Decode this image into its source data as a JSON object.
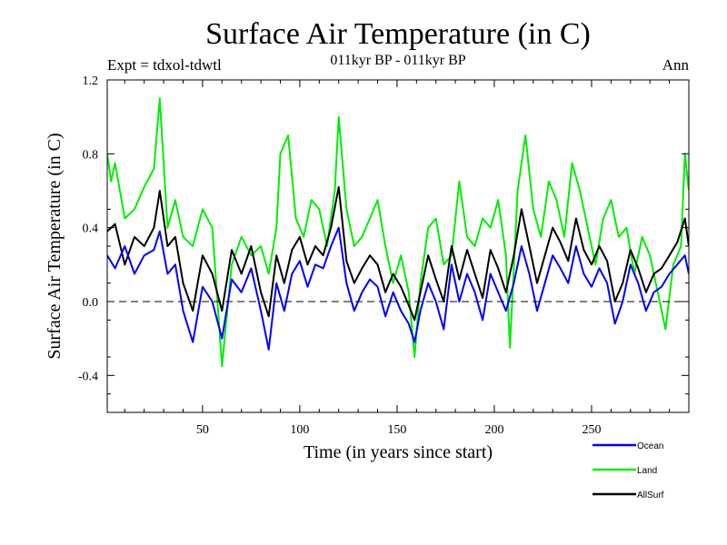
{
  "chart_data": {
    "type": "line",
    "title": "Surface Air Temperature (in C)",
    "subtitle": "011kyr BP - 011kyr BP",
    "experiment_label": "Expt = tdxol-tdwtl",
    "season_label": "Ann",
    "xlabel": "Time (in years since start)",
    "ylabel": "Surface Air Temperature (in C)",
    "xlim": [
      1,
      300
    ],
    "ylim": [
      -0.6,
      1.2
    ],
    "x_ticks": [
      50,
      100,
      150,
      200,
      250
    ],
    "x_tick_labels": [
      "50",
      "100",
      "150",
      "200",
      "250"
    ],
    "y_ticks": [
      -0.4,
      0.0,
      0.4,
      0.8,
      1.2
    ],
    "y_tick_labels": [
      "-0.4",
      "0.0",
      "0.4",
      "0.8",
      "1.2"
    ],
    "zero_line": "dashed",
    "grid": false,
    "legend_position": "bottom-right, below plot",
    "series": [
      {
        "name": "Ocean",
        "color": "#0000ff",
        "x": [
          1,
          5,
          10,
          15,
          20,
          25,
          28,
          32,
          36,
          40,
          45,
          50,
          55,
          60,
          65,
          70,
          75,
          80,
          84,
          88,
          92,
          96,
          100,
          104,
          108,
          112,
          116,
          120,
          124,
          128,
          132,
          136,
          140,
          144,
          148,
          152,
          156,
          159,
          162,
          166,
          170,
          174,
          178,
          182,
          186,
          190,
          194,
          198,
          202,
          206,
          210,
          214,
          218,
          222,
          226,
          230,
          234,
          238,
          242,
          246,
          250,
          254,
          258,
          262,
          266,
          270,
          274,
          278,
          282,
          286,
          290,
          294,
          298,
          300
        ],
        "y": [
          0.25,
          0.18,
          0.3,
          0.15,
          0.25,
          0.28,
          0.38,
          0.15,
          0.2,
          -0.05,
          -0.22,
          0.08,
          0.0,
          -0.2,
          0.12,
          0.05,
          0.18,
          -0.05,
          -0.26,
          0.1,
          -0.05,
          0.15,
          0.22,
          0.08,
          0.2,
          0.18,
          0.3,
          0.4,
          0.1,
          -0.05,
          0.05,
          0.12,
          0.08,
          -0.08,
          0.05,
          -0.05,
          -0.12,
          -0.22,
          -0.05,
          0.1,
          0.0,
          -0.15,
          0.2,
          0.0,
          0.15,
          0.05,
          -0.1,
          0.15,
          0.05,
          -0.05,
          0.1,
          0.3,
          0.15,
          -0.05,
          0.1,
          0.25,
          0.18,
          0.1,
          0.3,
          0.15,
          0.08,
          0.18,
          0.1,
          -0.12,
          0.0,
          0.2,
          0.1,
          -0.05,
          0.05,
          0.08,
          0.15,
          0.2,
          0.25,
          0.15
        ]
      },
      {
        "name": "Land",
        "color": "#00ee00",
        "x": [
          1,
          3,
          5,
          10,
          15,
          20,
          25,
          28,
          32,
          36,
          40,
          45,
          50,
          55,
          60,
          65,
          70,
          75,
          80,
          84,
          88,
          90,
          94,
          98,
          102,
          106,
          110,
          114,
          118,
          120,
          124,
          128,
          132,
          136,
          140,
          144,
          148,
          152,
          156,
          159,
          162,
          166,
          170,
          174,
          178,
          182,
          186,
          190,
          194,
          198,
          202,
          206,
          208,
          212,
          216,
          220,
          224,
          228,
          232,
          236,
          240,
          244,
          248,
          252,
          256,
          260,
          264,
          268,
          272,
          276,
          280,
          284,
          288,
          292,
          296,
          298,
          300
        ],
        "y": [
          0.8,
          0.65,
          0.75,
          0.45,
          0.5,
          0.62,
          0.72,
          1.1,
          0.4,
          0.55,
          0.35,
          0.3,
          0.5,
          0.4,
          -0.35,
          0.2,
          0.35,
          0.25,
          0.3,
          0.15,
          0.4,
          0.8,
          0.9,
          0.45,
          0.35,
          0.55,
          0.5,
          0.3,
          0.6,
          1.0,
          0.5,
          0.3,
          0.35,
          0.45,
          0.55,
          0.3,
          0.1,
          0.25,
          0.05,
          -0.3,
          0.1,
          0.4,
          0.45,
          0.2,
          0.25,
          0.65,
          0.35,
          0.3,
          0.45,
          0.4,
          0.55,
          0.25,
          -0.25,
          0.6,
          0.9,
          0.5,
          0.35,
          0.65,
          0.55,
          0.35,
          0.75,
          0.6,
          0.4,
          0.2,
          0.45,
          0.55,
          0.35,
          0.4,
          0.15,
          0.35,
          0.25,
          0.05,
          -0.15,
          0.2,
          0.3,
          0.8,
          0.6
        ]
      },
      {
        "name": "AllSurf",
        "color": "#000000",
        "x": [
          1,
          5,
          10,
          15,
          20,
          25,
          28,
          32,
          36,
          40,
          45,
          50,
          55,
          60,
          65,
          70,
          75,
          80,
          84,
          88,
          92,
          96,
          100,
          104,
          108,
          112,
          116,
          120,
          124,
          128,
          132,
          136,
          140,
          144,
          148,
          152,
          156,
          159,
          162,
          166,
          170,
          174,
          178,
          182,
          186,
          190,
          194,
          198,
          202,
          206,
          210,
          214,
          218,
          222,
          226,
          230,
          234,
          238,
          242,
          246,
          250,
          254,
          258,
          262,
          266,
          270,
          274,
          278,
          282,
          286,
          290,
          294,
          298,
          300
        ],
        "y": [
          0.38,
          0.42,
          0.2,
          0.35,
          0.3,
          0.4,
          0.6,
          0.3,
          0.35,
          0.1,
          -0.05,
          0.25,
          0.15,
          -0.05,
          0.28,
          0.15,
          0.3,
          0.05,
          -0.08,
          0.25,
          0.1,
          0.28,
          0.35,
          0.2,
          0.3,
          0.25,
          0.4,
          0.62,
          0.22,
          0.1,
          0.18,
          0.25,
          0.2,
          0.05,
          0.15,
          0.08,
          -0.02,
          -0.1,
          0.05,
          0.25,
          0.12,
          0.0,
          0.3,
          0.12,
          0.28,
          0.15,
          0.02,
          0.28,
          0.18,
          0.05,
          0.25,
          0.5,
          0.3,
          0.1,
          0.25,
          0.4,
          0.32,
          0.22,
          0.45,
          0.28,
          0.2,
          0.3,
          0.22,
          0.0,
          0.1,
          0.28,
          0.18,
          0.05,
          0.15,
          0.18,
          0.25,
          0.32,
          0.45,
          0.3
        ]
      }
    ]
  }
}
